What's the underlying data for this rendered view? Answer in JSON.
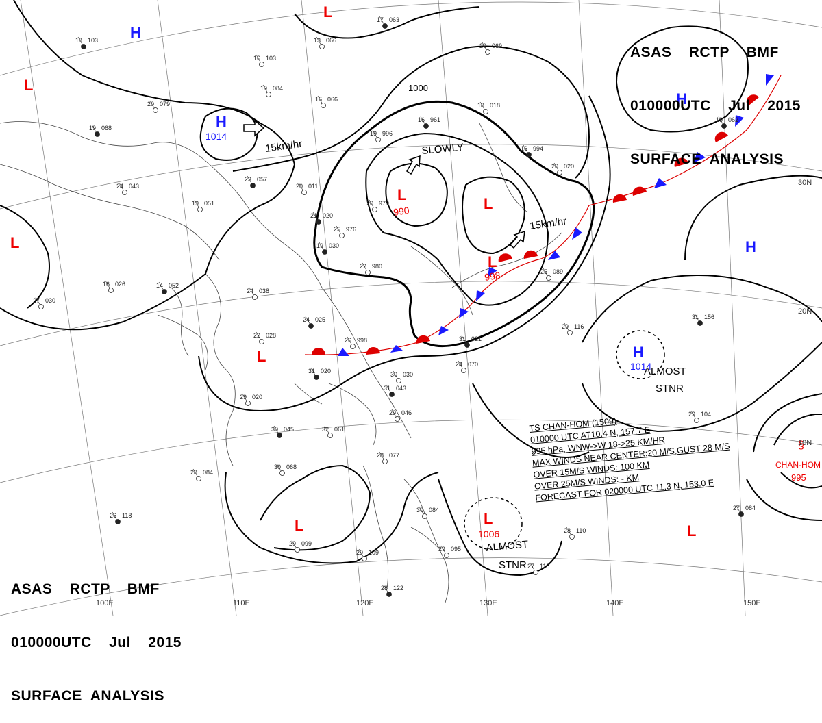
{
  "header": {
    "line1": "ASAS    RCTP    BMF",
    "line2": "010000UTC    Jul    2015",
    "line3": "SURFACE  ANALYSIS"
  },
  "footer": {
    "line1": "ASAS    RCTP    BMF",
    "line2": "010000UTC    Jul    2015",
    "line3": "SURFACE  ANALYSIS"
  },
  "longitude_labels": [
    "100E",
    "110E",
    "120E",
    "130E",
    "140E",
    "150E"
  ],
  "latitude_labels": [
    "30N",
    "20N",
    "10N"
  ],
  "isobar_labels": [
    "1000"
  ],
  "pressure_centers": [
    {
      "type": "H",
      "value": "1014"
    },
    {
      "type": "L",
      "value": "990"
    },
    {
      "type": "L",
      "value": "998"
    },
    {
      "type": "H",
      "value": "1014"
    },
    {
      "type": "L",
      "value": "1006"
    },
    {
      "type": "L",
      "value": "995"
    }
  ],
  "movement_labels": [
    "15km/hr",
    "SLOWLY",
    "15km/hr",
    "ALMOST",
    "STNR",
    "ALMOST",
    "STNR"
  ],
  "typhoon_label": "CHAN-HOM",
  "storm_info": {
    "line1": "TS  CHAN-HOM  (1509)",
    "line2": "010000 UTC  AT10.4 N, 157.7 E",
    "line3": "995 hPa, WNW->W  18->25 KM/HR",
    "line4": "MAX WINDS NEAR CENTER:20 M/S,GUST 28 M/S",
    "line5": "OVER 15M/S WINDS: 100 KM",
    "line6": "OVER 25M/S WINDS: - KM",
    "line7": "FORECAST FOR 020000 UTC 11.3 N, 153.0 E"
  },
  "stations": [
    {
      "t": "18",
      "p": "103"
    },
    {
      "t": "16",
      "p": "103"
    },
    {
      "t": "20",
      "p": "079"
    },
    {
      "t": "19",
      "p": "068"
    },
    {
      "t": "19",
      "p": "084"
    },
    {
      "t": "16",
      "p": "066"
    },
    {
      "t": "17",
      "p": "063"
    },
    {
      "t": "13",
      "p": "066"
    },
    {
      "t": "24",
      "p": "043"
    },
    {
      "t": "23",
      "p": "057"
    },
    {
      "t": "20",
      "p": "011"
    },
    {
      "t": "19",
      "p": "051"
    },
    {
      "t": "21",
      "p": "020"
    },
    {
      "t": "25",
      "p": "976"
    },
    {
      "t": "20",
      "p": "979"
    },
    {
      "t": "19",
      "p": "030"
    },
    {
      "t": "22",
      "p": "980"
    },
    {
      "t": "24",
      "p": "038"
    },
    {
      "t": "14",
      "p": "052"
    },
    {
      "t": "16",
      "p": "026"
    },
    {
      "t": "27",
      "p": "030"
    },
    {
      "t": "24",
      "p": "025"
    },
    {
      "t": "26",
      "p": "998"
    },
    {
      "t": "22",
      "p": "028"
    },
    {
      "t": "31",
      "p": "020"
    },
    {
      "t": "30",
      "p": "030"
    },
    {
      "t": "29",
      "p": "020"
    },
    {
      "t": "31",
      "p": "043"
    },
    {
      "t": "29",
      "p": "046"
    },
    {
      "t": "32",
      "p": "061"
    },
    {
      "t": "30",
      "p": "045"
    },
    {
      "t": "30",
      "p": "068"
    },
    {
      "t": "28",
      "p": "084"
    },
    {
      "t": "26",
      "p": "118"
    },
    {
      "t": "29",
      "p": "099"
    },
    {
      "t": "29",
      "p": "109"
    },
    {
      "t": "28",
      "p": "122"
    },
    {
      "t": "28",
      "p": "077"
    },
    {
      "t": "30",
      "p": "084"
    },
    {
      "t": "16",
      "p": "961"
    },
    {
      "t": "19",
      "p": "996"
    },
    {
      "t": "18",
      "p": "018"
    },
    {
      "t": "16",
      "p": "994"
    },
    {
      "t": "20",
      "p": "020"
    },
    {
      "t": "24",
      "p": "070"
    },
    {
      "t": "31",
      "p": "156"
    },
    {
      "t": "29",
      "p": "116"
    },
    {
      "t": "29",
      "p": "104"
    },
    {
      "t": "27",
      "p": "084"
    },
    {
      "t": "28",
      "p": "110"
    },
    {
      "t": "27",
      "p": "118"
    },
    {
      "t": "19",
      "p": "062"
    },
    {
      "t": "20",
      "p": "069"
    },
    {
      "t": "25",
      "p": "089"
    },
    {
      "t": "31",
      "p": "021"
    },
    {
      "t": "29",
      "p": "095"
    }
  ]
}
